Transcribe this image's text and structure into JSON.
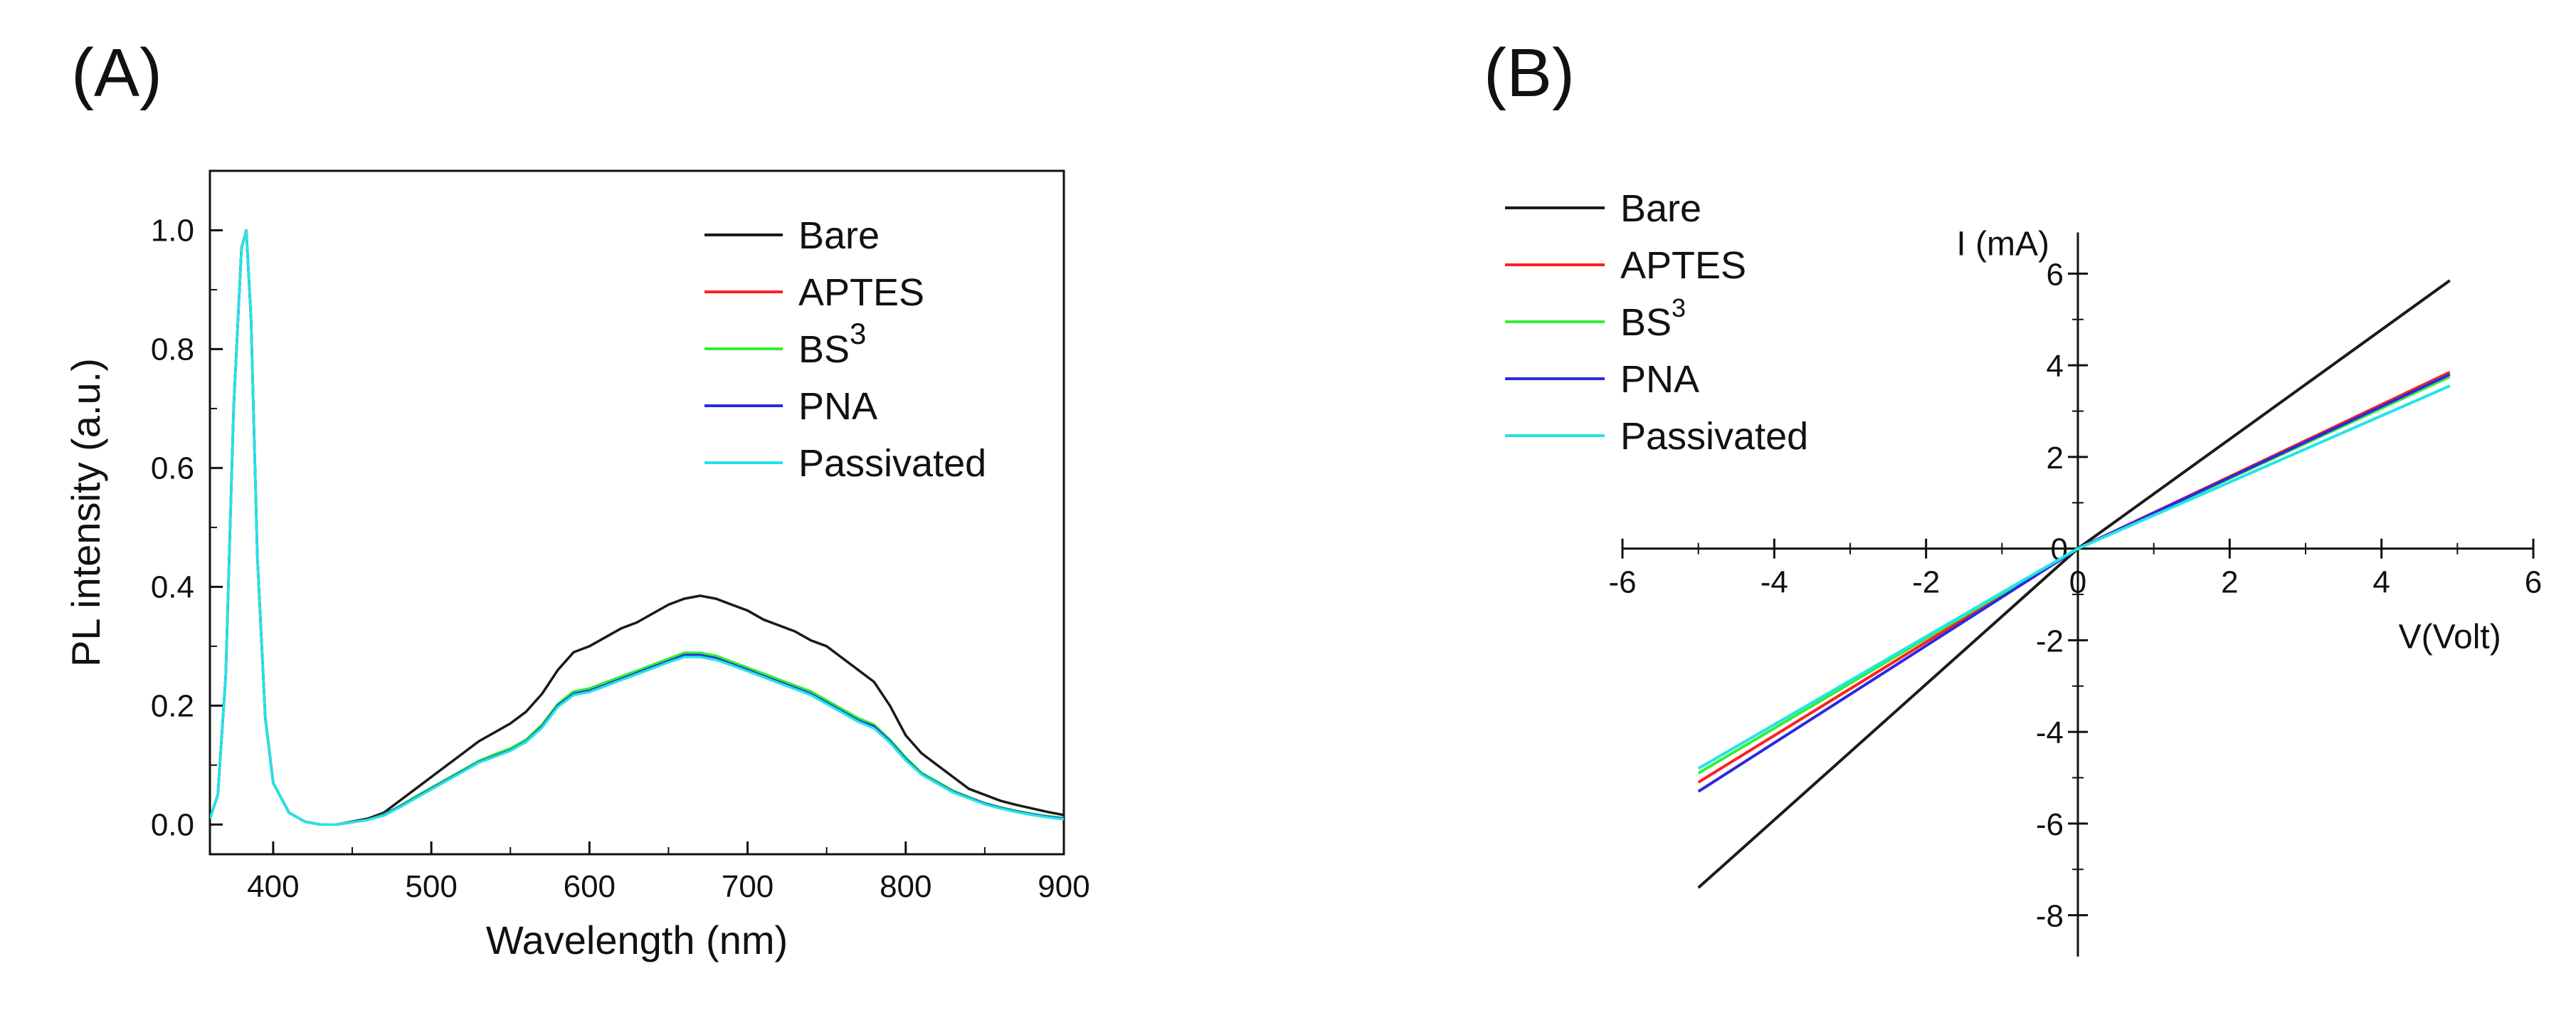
{
  "panels": {
    "a_label": "(A)",
    "b_label": "(B)"
  },
  "chart_data": [
    {
      "id": "A",
      "type": "line",
      "title": "",
      "xlabel": "Wavelength (nm)",
      "ylabel": "PL intensity (a.u.)",
      "xlim": [
        360,
        900
      ],
      "ylim": [
        -0.05,
        1.1
      ],
      "xticks": [
        400,
        500,
        600,
        700,
        800,
        900
      ],
      "yticks": [
        0.0,
        0.2,
        0.4,
        0.6,
        0.8,
        1.0
      ],
      "xtick_labels": [
        "400",
        "500",
        "600",
        "700",
        "800",
        "900"
      ],
      "ytick_labels": [
        "0.0",
        "0.2",
        "0.4",
        "0.6",
        "0.8",
        "1.0"
      ],
      "legend_position": "top-right",
      "x": [
        360,
        365,
        370,
        375,
        380,
        383,
        386,
        390,
        395,
        400,
        410,
        420,
        430,
        440,
        450,
        460,
        470,
        480,
        490,
        500,
        510,
        520,
        530,
        540,
        550,
        560,
        570,
        580,
        590,
        600,
        610,
        620,
        630,
        640,
        650,
        660,
        670,
        680,
        690,
        700,
        710,
        720,
        730,
        740,
        750,
        760,
        770,
        780,
        790,
        800,
        810,
        820,
        830,
        840,
        850,
        860,
        870,
        880,
        890,
        900
      ],
      "series": [
        {
          "name": "Bare",
          "color": "#1a1a1a",
          "values": [
            0.01,
            0.05,
            0.25,
            0.7,
            0.97,
            1.0,
            0.85,
            0.45,
            0.18,
            0.07,
            0.02,
            0.005,
            0.0,
            0.0,
            0.005,
            0.01,
            0.02,
            0.04,
            0.06,
            0.08,
            0.1,
            0.12,
            0.14,
            0.155,
            0.17,
            0.19,
            0.22,
            0.26,
            0.29,
            0.3,
            0.315,
            0.33,
            0.34,
            0.355,
            0.37,
            0.38,
            0.385,
            0.38,
            0.37,
            0.36,
            0.345,
            0.335,
            0.325,
            0.31,
            0.3,
            0.28,
            0.26,
            0.24,
            0.2,
            0.15,
            0.12,
            0.1,
            0.08,
            0.06,
            0.05,
            0.04,
            0.033,
            0.027,
            0.021,
            0.016
          ]
        },
        {
          "name": "APTES",
          "color": "#ff2020",
          "values": [
            0.01,
            0.05,
            0.25,
            0.7,
            0.97,
            1.0,
            0.85,
            0.45,
            0.18,
            0.07,
            0.02,
            0.005,
            0.0,
            0.0,
            0.004,
            0.008,
            0.016,
            0.03,
            0.045,
            0.06,
            0.075,
            0.09,
            0.105,
            0.115,
            0.125,
            0.14,
            0.165,
            0.2,
            0.22,
            0.225,
            0.235,
            0.245,
            0.255,
            0.265,
            0.275,
            0.285,
            0.285,
            0.28,
            0.27,
            0.26,
            0.25,
            0.24,
            0.23,
            0.22,
            0.205,
            0.19,
            0.175,
            0.165,
            0.14,
            0.11,
            0.085,
            0.07,
            0.055,
            0.045,
            0.035,
            0.028,
            0.022,
            0.017,
            0.013,
            0.01
          ]
        },
        {
          "name": "BS3",
          "color": "#33ee33",
          "values": [
            0.01,
            0.05,
            0.25,
            0.7,
            0.97,
            1.0,
            0.85,
            0.45,
            0.18,
            0.07,
            0.02,
            0.005,
            0.0,
            0.0,
            0.004,
            0.008,
            0.017,
            0.031,
            0.047,
            0.062,
            0.077,
            0.092,
            0.107,
            0.118,
            0.128,
            0.143,
            0.168,
            0.203,
            0.224,
            0.229,
            0.239,
            0.249,
            0.259,
            0.269,
            0.279,
            0.289,
            0.289,
            0.284,
            0.274,
            0.264,
            0.254,
            0.244,
            0.234,
            0.224,
            0.209,
            0.194,
            0.179,
            0.168,
            0.143,
            0.113,
            0.087,
            0.072,
            0.057,
            0.046,
            0.036,
            0.029,
            0.023,
            0.018,
            0.014,
            0.011
          ]
        },
        {
          "name": "PNA",
          "color": "#2a2ae0",
          "values": [
            0.01,
            0.05,
            0.25,
            0.7,
            0.97,
            1.0,
            0.85,
            0.45,
            0.18,
            0.07,
            0.02,
            0.005,
            0.0,
            0.0,
            0.004,
            0.008,
            0.016,
            0.03,
            0.045,
            0.06,
            0.075,
            0.09,
            0.105,
            0.115,
            0.125,
            0.14,
            0.165,
            0.2,
            0.22,
            0.225,
            0.235,
            0.245,
            0.255,
            0.265,
            0.275,
            0.285,
            0.285,
            0.28,
            0.27,
            0.26,
            0.25,
            0.24,
            0.23,
            0.22,
            0.205,
            0.19,
            0.175,
            0.165,
            0.14,
            0.11,
            0.085,
            0.07,
            0.055,
            0.045,
            0.035,
            0.028,
            0.022,
            0.017,
            0.013,
            0.01
          ]
        },
        {
          "name": "Passivated",
          "color": "#22e5e5",
          "values": [
            0.01,
            0.05,
            0.25,
            0.7,
            0.97,
            1.0,
            0.85,
            0.45,
            0.18,
            0.07,
            0.02,
            0.005,
            0.0,
            0.0,
            0.004,
            0.008,
            0.015,
            0.029,
            0.044,
            0.059,
            0.074,
            0.089,
            0.104,
            0.114,
            0.124,
            0.139,
            0.163,
            0.198,
            0.218,
            0.223,
            0.233,
            0.243,
            0.253,
            0.263,
            0.273,
            0.282,
            0.282,
            0.277,
            0.268,
            0.258,
            0.248,
            0.238,
            0.228,
            0.218,
            0.203,
            0.188,
            0.173,
            0.162,
            0.138,
            0.108,
            0.084,
            0.069,
            0.054,
            0.044,
            0.034,
            0.027,
            0.021,
            0.016,
            0.012,
            0.009
          ]
        }
      ],
      "legend": [
        "Bare",
        "APTES",
        "BS",
        "PNA",
        "Passivated"
      ],
      "legend_superscript": "3"
    },
    {
      "id": "B",
      "type": "line",
      "title": "",
      "xlabel": "V(Volt)",
      "ylabel": "I (mA)",
      "xlim": [
        -6,
        6
      ],
      "ylim": [
        -9,
        7
      ],
      "xticks": [
        -6,
        -4,
        -2,
        0,
        2,
        4,
        6
      ],
      "yticks": [
        -8,
        -6,
        -4,
        -2,
        0,
        2,
        4,
        6
      ],
      "xtick_labels": [
        "-6",
        "-4",
        "-2",
        "0",
        "2",
        "4",
        "6"
      ],
      "ytick_labels": [
        "-8",
        "-6",
        "-4",
        "-2",
        "0",
        "2",
        "4",
        "6"
      ],
      "legend_position": "top-left",
      "series": [
        {
          "name": "Bare",
          "color": "#1a1a1a",
          "x": [
            -5,
            0,
            4.9
          ],
          "y": [
            -7.4,
            0,
            5.85
          ]
        },
        {
          "name": "APTES",
          "color": "#ff2020",
          "x": [
            -5,
            0,
            4.9
          ],
          "y": [
            -5.1,
            0,
            3.85
          ]
        },
        {
          "name": "BS3",
          "color": "#33ee33",
          "x": [
            -5,
            0,
            4.9
          ],
          "y": [
            -4.9,
            0,
            3.75
          ]
        },
        {
          "name": "PNA",
          "color": "#2a2ae0",
          "x": [
            -5,
            0,
            4.9
          ],
          "y": [
            -5.3,
            0,
            3.8
          ]
        },
        {
          "name": "Passivated",
          "color": "#22e5e5",
          "x": [
            -5,
            0,
            4.9
          ],
          "y": [
            -4.8,
            0,
            3.55
          ]
        }
      ],
      "legend": [
        "Bare",
        "APTES",
        "BS",
        "PNA",
        "Passivated"
      ],
      "legend_superscript": "3"
    }
  ]
}
